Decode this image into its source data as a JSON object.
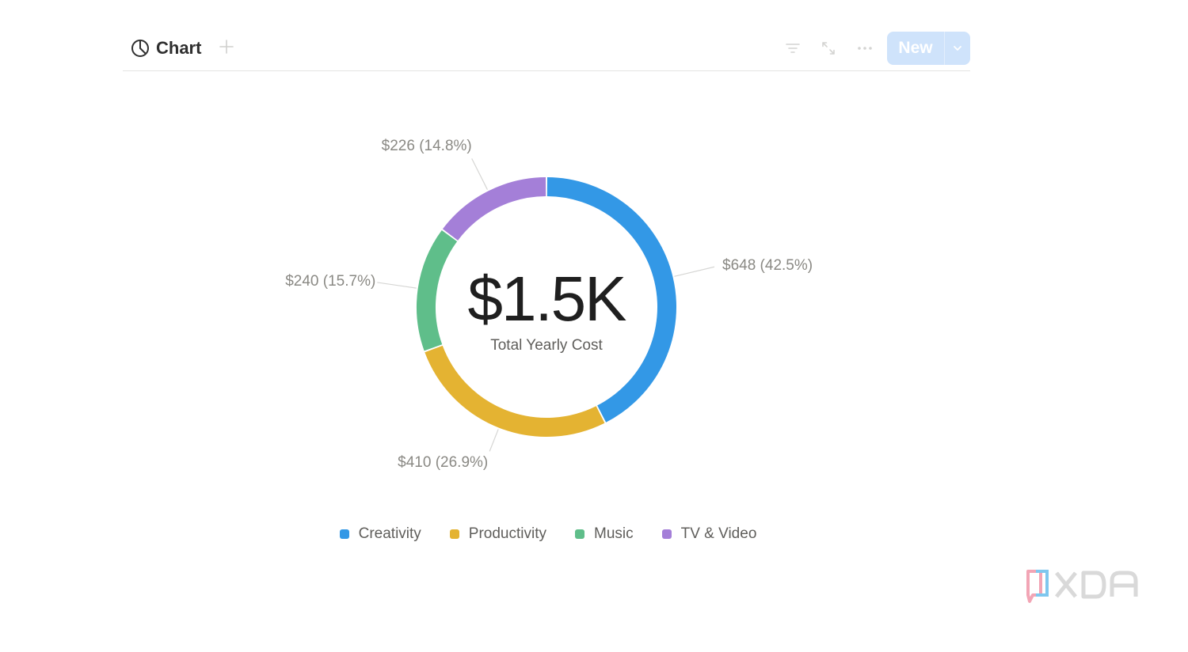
{
  "toolbar": {
    "view_label": "Chart",
    "new_label": "New",
    "icons": [
      "pie-chart-icon",
      "plus-icon",
      "filter-icon",
      "expand-icon",
      "more-icon",
      "chevron-down-icon"
    ]
  },
  "colors": {
    "creativity": "#3398e6",
    "productivity": "#e4b332",
    "music": "#5fbe8a",
    "tv_video": "#a47fd8",
    "accent": "#cfe3fb"
  },
  "chart_data": {
    "type": "pie",
    "variant": "donut",
    "center_value": "$1.5K",
    "center_label": "Total Yearly Cost",
    "legend_position": "bottom",
    "series": [
      {
        "name": "Creativity",
        "value": 648,
        "percent": 42.5,
        "label": "$648 (42.5%)",
        "color": "#3398e6"
      },
      {
        "name": "Productivity",
        "value": 410,
        "percent": 26.9,
        "label": "$410 (26.9%)",
        "color": "#e4b332"
      },
      {
        "name": "Music",
        "value": 240,
        "percent": 15.7,
        "label": "$240 (15.7%)",
        "color": "#5fbe8a"
      },
      {
        "name": "TV & Video",
        "value": 226,
        "percent": 14.8,
        "label": "$226 (14.8%)",
        "color": "#a47fd8"
      }
    ]
  },
  "watermark": "XDA"
}
